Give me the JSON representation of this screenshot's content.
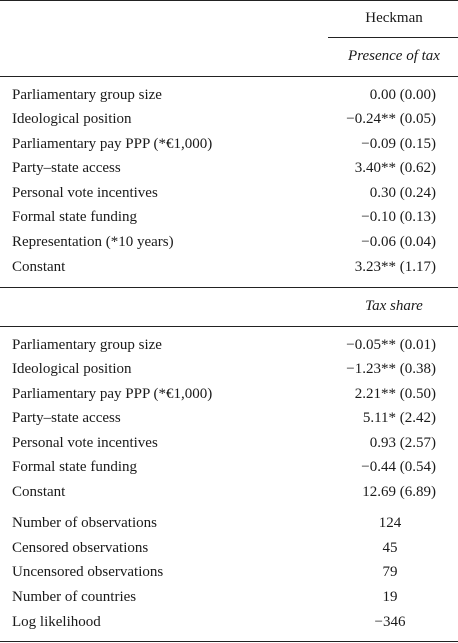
{
  "header": {
    "model": "Heckman",
    "section1_title": "Presence of tax",
    "section2_title": "Tax share"
  },
  "section1": [
    {
      "label": "Parliamentary group size",
      "value": "0.00 (0.00)"
    },
    {
      "label": "Ideological position",
      "value": "−0.24** (0.05)"
    },
    {
      "label": "Parliamentary pay PPP (*€1,000)",
      "value": "−0.09 (0.15)"
    },
    {
      "label": "Party–state access",
      "value": "3.40** (0.62)"
    },
    {
      "label": "Personal vote incentives",
      "value": "0.30 (0.24)"
    },
    {
      "label": "Formal state funding",
      "value": "−0.10 (0.13)"
    },
    {
      "label": "Representation (*10 years)",
      "value": "−0.06 (0.04)"
    },
    {
      "label": "Constant",
      "value": "3.23** (1.17)"
    }
  ],
  "section2": [
    {
      "label": "Parliamentary group size",
      "value": "−0.05** (0.01)"
    },
    {
      "label": "Ideological position",
      "value": "−1.23** (0.38)"
    },
    {
      "label": "Parliamentary pay PPP (*€1,000)",
      "value": "2.21** (0.50)"
    },
    {
      "label": "Party–state access",
      "value": "5.11* (2.42)"
    },
    {
      "label": "Personal vote incentives",
      "value": "0.93 (2.57)"
    },
    {
      "label": "Formal state funding",
      "value": "−0.44 (0.54)"
    },
    {
      "label": "Constant",
      "value": "12.69 (6.89)"
    }
  ],
  "stats": [
    {
      "label": "Number of observations",
      "value": "124"
    },
    {
      "label": "Censored observations",
      "value": "45"
    },
    {
      "label": "Uncensored observations",
      "value": "79"
    },
    {
      "label": "Number of countries",
      "value": "19"
    },
    {
      "label": "Log likelihood",
      "value": "−346"
    }
  ]
}
